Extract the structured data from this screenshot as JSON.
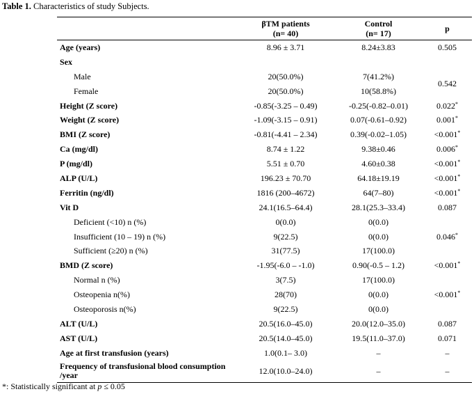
{
  "caption": {
    "label": "Table 1.",
    "text": " Characteristics of study Subjects."
  },
  "columns": {
    "group1_name": "βTM patients",
    "group1_n": "(n= 40)",
    "group2_name": "Control",
    "group2_n": "(n= 17)",
    "p": "p"
  },
  "rows": {
    "age": {
      "label": "Age (years)",
      "pt": "8.96 ± 3.71",
      "ctl": "8.24±3.83",
      "p": "0.505"
    },
    "sex": {
      "label": "Sex"
    },
    "male": {
      "label": "Male",
      "pt": "20(50.0%)",
      "ctl": "7(41.2%)"
    },
    "female": {
      "label": "Female",
      "pt": "20(50.0%)",
      "ctl": "10(58.8%)"
    },
    "sex_p": "0.542",
    "height": {
      "label": "Height (Z score)",
      "pt": "-0.85(-3.25 – 0.49)",
      "ctl": "-0.25(-0.82–0.01)",
      "p": "0.022"
    },
    "weight": {
      "label": "Weight (Z score)",
      "pt": "-1.09(-3.15 – 0.91)",
      "ctl": "0.07(-0.61–0.92)",
      "p": "0.001"
    },
    "bmi": {
      "label": "BMI (Z score)",
      "pt": "-0.81(-4.41 – 2.34)",
      "ctl": "0.39(-0.02–1.05)",
      "p": "<0.001"
    },
    "ca": {
      "label": "Ca (mg/dl)",
      "pt": "8.74 ± 1.22",
      "ctl": "9.38±0.46",
      "p": "0.006"
    },
    "phos": {
      "label": "P (mg/dl)",
      "pt": "5.51 ± 0.70",
      "ctl": "4.60±0.38",
      "p": "<0.001"
    },
    "alp": {
      "label": "ALP (U/L)",
      "pt": "196.23 ± 70.70",
      "ctl": "64.18±19.19",
      "p": "<0.001"
    },
    "ferritin": {
      "label": "Ferritin (ng/dl)",
      "pt": "1816 (200–4672)",
      "ctl": "64(7–80)",
      "p": "<0.001"
    },
    "vitd": {
      "label": "Vit D",
      "pt": "24.1(16.5–64.4)",
      "ctl": "28.1(25.3–33.4)",
      "p": "0.087"
    },
    "deficient": {
      "label": "Deficient (<10) n (%)",
      "pt": "0(0.0)",
      "ctl": "0(0.0)"
    },
    "insufficient": {
      "label": "Insufficient (10 – 19) n (%)",
      "pt": "9(22.5)",
      "ctl": "0(0.0)",
      "p": "0.046"
    },
    "sufficient": {
      "label": "Sufficient (≥20) n (%)",
      "pt": "31(77.5)",
      "ctl": "17(100.0)"
    },
    "bmd": {
      "label": "BMD (Z score)",
      "pt": "-1.95(-6.0 – -1.0)",
      "ctl": "0.90(-0.5 – 1.2)",
      "p": "<0.001"
    },
    "normal": {
      "label": "Normal n (%)",
      "pt": "3(7.5)",
      "ctl": "17(100.0)"
    },
    "osteopenia": {
      "label": "Osteopenia n(%)",
      "pt": "28(70)",
      "ctl": "0(0.0)",
      "p": "<0.001"
    },
    "osteoporosis": {
      "label": "Osteoporosis n(%)",
      "pt": "9(22.5)",
      "ctl": "0(0.0)"
    },
    "alt": {
      "label": "ALT (U/L)",
      "pt": "20.5(16.0–45.0)",
      "ctl": "20.0(12.0–35.0)",
      "p": "0.087"
    },
    "ast": {
      "label": "AST (U/L)",
      "pt": "20.5(14.0–45.0)",
      "ctl": "19.5(11.0–37.0)",
      "p": "0.071"
    },
    "age_first": {
      "label": "Age at first transfusion (years)",
      "pt": "1.0(0.1– 3.0)",
      "ctl": "–",
      "p": "–"
    },
    "freq": {
      "label": "Frequency of transfusional blood consumption /year",
      "pt": "12.0(10.0–24.0)",
      "ctl": "–",
      "p": "–"
    }
  },
  "significance_marker": "*",
  "footnote": {
    "marker": "*",
    "text": ": Statistically significant at ",
    "var": "p",
    "rest": " ≤ 0.05"
  }
}
